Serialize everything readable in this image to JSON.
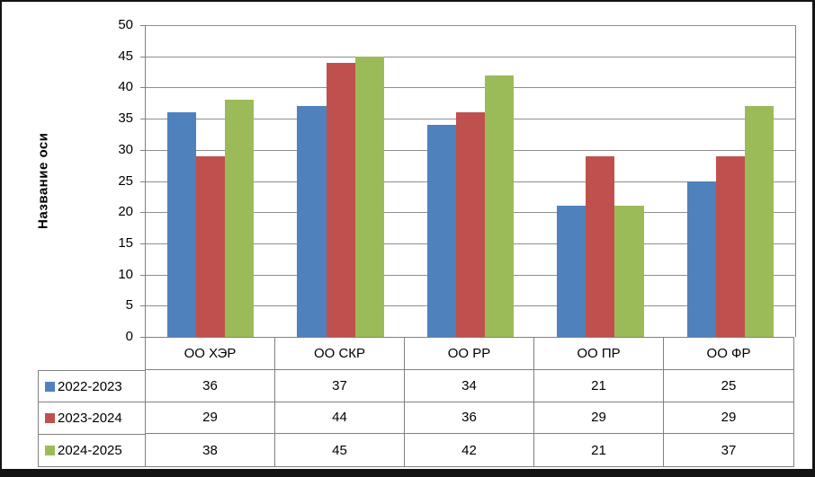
{
  "chart_data": {
    "type": "bar",
    "title": "",
    "xlabel": "",
    "ylabel": "Название оси",
    "categories": [
      "ОО ХЭР",
      "ОО СКР",
      "ОО РР",
      "ОО ПР",
      "ОО ФР"
    ],
    "series": [
      {
        "name": "2022-2023",
        "color": "#4F81BD",
        "values": [
          36,
          37,
          34,
          21,
          25
        ]
      },
      {
        "name": "2023-2024",
        "color": "#C0504D",
        "values": [
          29,
          44,
          36,
          29,
          29
        ]
      },
      {
        "name": "2024-2025",
        "color": "#9BBB59",
        "values": [
          38,
          45,
          42,
          21,
          37
        ]
      }
    ],
    "ylim": [
      0,
      50
    ],
    "ytick_step": 5,
    "yticks": [
      "0",
      "5",
      "10",
      "15",
      "20",
      "25",
      "30",
      "35",
      "40",
      "45",
      "50"
    ],
    "grid": true,
    "legend_position": "data-table-left",
    "gridline_color": "#8e8e8e",
    "border_color": "#808080"
  }
}
